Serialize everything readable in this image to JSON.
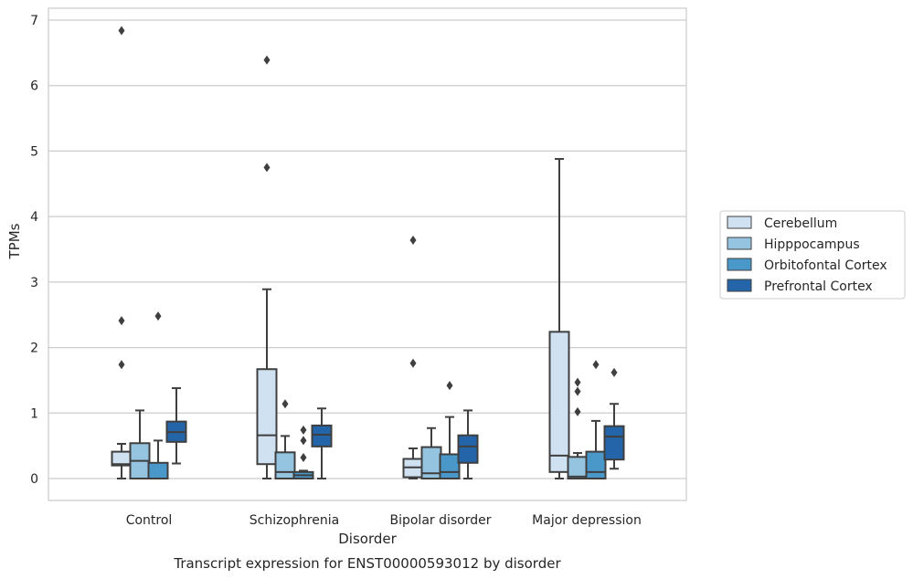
{
  "chart_data": {
    "type": "box",
    "title": "",
    "caption": "Transcript expression for ENST00000593012 by disorder",
    "xlabel": "Disorder",
    "ylabel": "TPMs",
    "ylim": [
      -0.33,
      7.2
    ],
    "yticks": [
      "0",
      "1",
      "2",
      "3",
      "4",
      "5",
      "6",
      "7"
    ],
    "grid": "horizontal",
    "legend_position": "right",
    "categories": [
      "Control",
      "Schizophrenia",
      "Bipolar disorder",
      "Major depression"
    ],
    "series": [
      {
        "name": "Cerebellum",
        "color": "#d0e1f2",
        "boxes": [
          {
            "whisker_low": 0.0,
            "q1": 0.2,
            "median": 0.22,
            "q3": 0.41,
            "whisker_high": 0.53,
            "outliers": [
              1.74,
              2.41,
              6.84
            ]
          },
          {
            "whisker_low": 0.0,
            "q1": 0.22,
            "median": 0.66,
            "q3": 1.67,
            "whisker_high": 2.89,
            "outliers": [
              4.75,
              6.39
            ]
          },
          {
            "whisker_low": 0.0,
            "q1": 0.02,
            "median": 0.17,
            "q3": 0.3,
            "whisker_high": 0.46,
            "outliers": [
              1.76,
              3.64
            ]
          },
          {
            "whisker_low": 0.0,
            "q1": 0.1,
            "median": 0.35,
            "q3": 2.24,
            "whisker_high": 4.88,
            "outliers": []
          }
        ]
      },
      {
        "name": "Hipppocampus",
        "color": "#94c4df",
        "boxes": [
          {
            "whisker_low": 0.0,
            "q1": 0.0,
            "median": 0.27,
            "q3": 0.54,
            "whisker_high": 1.04,
            "outliers": []
          },
          {
            "whisker_low": 0.0,
            "q1": 0.0,
            "median": 0.1,
            "q3": 0.4,
            "whisker_high": 0.65,
            "outliers": [
              1.14
            ]
          },
          {
            "whisker_low": 0.0,
            "q1": 0.0,
            "median": 0.08,
            "q3": 0.48,
            "whisker_high": 0.77,
            "outliers": []
          },
          {
            "whisker_low": 0.0,
            "q1": 0.0,
            "median": 0.03,
            "q3": 0.33,
            "whisker_high": 0.39,
            "outliers": [
              1.02,
              1.33,
              1.47
            ]
          }
        ]
      },
      {
        "name": "Orbitofontal Cortex",
        "color": "#4a98c9",
        "boxes": [
          {
            "whisker_low": 0.0,
            "q1": 0.0,
            "median": 0.0,
            "q3": 0.24,
            "whisker_high": 0.58,
            "outliers": [
              2.48
            ]
          },
          {
            "whisker_low": 0.0,
            "q1": 0.0,
            "median": 0.05,
            "q3": 0.1,
            "whisker_high": 0.12,
            "outliers": [
              0.32,
              0.58,
              0.74
            ]
          },
          {
            "whisker_low": 0.0,
            "q1": 0.0,
            "median": 0.1,
            "q3": 0.37,
            "whisker_high": 0.94,
            "outliers": [
              1.42
            ]
          },
          {
            "whisker_low": 0.0,
            "q1": 0.0,
            "median": 0.1,
            "q3": 0.41,
            "whisker_high": 0.88,
            "outliers": [
              1.74
            ]
          }
        ]
      },
      {
        "name": "Prefrontal Cortex",
        "color": "#2464a8",
        "boxes": [
          {
            "whisker_low": 0.23,
            "q1": 0.56,
            "median": 0.71,
            "q3": 0.87,
            "whisker_high": 1.38,
            "outliers": []
          },
          {
            "whisker_low": 0.0,
            "q1": 0.49,
            "median": 0.67,
            "q3": 0.81,
            "whisker_high": 1.07,
            "outliers": []
          },
          {
            "whisker_low": 0.0,
            "q1": 0.24,
            "median": 0.49,
            "q3": 0.66,
            "whisker_high": 1.04,
            "outliers": []
          },
          {
            "whisker_low": 0.15,
            "q1": 0.29,
            "median": 0.64,
            "q3": 0.8,
            "whisker_high": 1.14,
            "outliers": [
              1.62
            ]
          }
        ]
      }
    ]
  }
}
